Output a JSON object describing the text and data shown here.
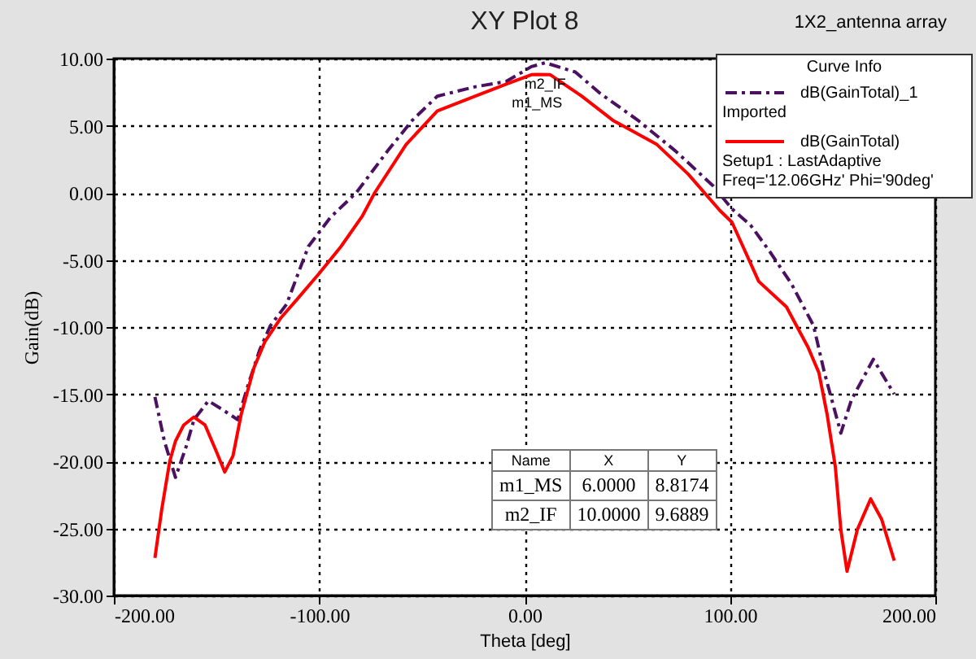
{
  "chart_data": {
    "type": "line",
    "title": "XY Plot 8",
    "xlabel": "Theta [deg]",
    "ylabel": "Gain(dB)",
    "legend_title": "Curve Info",
    "legend": "top right",
    "grid": true,
    "xlim": [
      -200,
      200
    ],
    "ylim": [
      -30,
      10
    ],
    "xticks": [
      {
        "value": -200,
        "label": "-200.00"
      },
      {
        "value": -100,
        "label": "-100.00"
      },
      {
        "value": 0,
        "label": "0.00"
      },
      {
        "value": 100,
        "label": "100.00"
      },
      {
        "value": 200,
        "label": "200.00"
      }
    ],
    "yticks": [
      {
        "value": -30,
        "label": "-30.00"
      },
      {
        "value": -25,
        "label": "-25.00"
      },
      {
        "value": -20,
        "label": "-20.00"
      },
      {
        "value": -15,
        "label": "-15.00"
      },
      {
        "value": -10,
        "label": "-10.00"
      },
      {
        "value": -5,
        "label": "-5.00"
      },
      {
        "value": 0,
        "label": "0.00"
      },
      {
        "value": 5,
        "label": "5.00"
      },
      {
        "value": 10,
        "label": "10.00"
      }
    ],
    "series": [
      {
        "name": "dB(GainTotal)_1",
        "color": "#4b1060",
        "line_style": "dashed",
        "x": [
          -180,
          -175.4,
          -170,
          -164.8,
          -161,
          -154,
          -147.6,
          -139.7,
          -134.4,
          -129,
          -123.8,
          -115.9,
          -105.3,
          -94.4,
          -82,
          -66.8,
          -54.7,
          -42.5,
          -24,
          -8.9,
          3.3,
          10,
          24.7,
          36.9,
          55.2,
          73.6,
          91.9,
          101,
          110,
          119.5,
          130,
          140.7,
          146,
          154,
          159.2,
          169.8,
          180
        ],
        "values": [
          -15.2,
          -18.5,
          -21.2,
          -18.9,
          -16.9,
          -15.5,
          -16.1,
          -16.9,
          -14.2,
          -11.7,
          -9.9,
          -8.3,
          -4.0,
          -1.8,
          0,
          3.1,
          5.4,
          7.2,
          7.9,
          8.3,
          9.4,
          9.6889,
          9.0,
          7.4,
          5.4,
          3.1,
          0.5,
          -1.2,
          -2.4,
          -4.4,
          -6.8,
          -9.9,
          -13.4,
          -17.9,
          -15.4,
          -12.4,
          -15.0
        ]
      },
      {
        "name": "dB(GainTotal)",
        "color": "#ff0000",
        "line_style": "solid",
        "x": [
          -180,
          -176.7,
          -172.8,
          -170,
          -166,
          -161,
          -155.6,
          -150,
          -146,
          -142,
          -138,
          -131.7,
          -126.5,
          -118.6,
          -110.6,
          -100,
          -89.4,
          -78.9,
          -73,
          -57.7,
          -42.5,
          -24,
          -8.9,
          3.3,
          6,
          12.5,
          27.8,
          43,
          64.4,
          79.6,
          95,
          101,
          114,
          127.5,
          138,
          143.3,
          147.3,
          151.3,
          154,
          157,
          162,
          168.5,
          173.8,
          180
        ],
        "values": [
          -27.2,
          -23.6,
          -20.0,
          -18.5,
          -17.3,
          -16.7,
          -17.3,
          -19.3,
          -20.8,
          -19.6,
          -16.5,
          -13.0,
          -11.1,
          -9.3,
          -7.9,
          -6.0,
          -4.0,
          -1.7,
          0,
          3.6,
          6.1,
          7.2,
          8.1,
          8.8,
          8.8174,
          8.8,
          7.2,
          5.4,
          3.6,
          1.4,
          -1.3,
          -2.2,
          -6.6,
          -8.5,
          -11.5,
          -13.4,
          -16.5,
          -20.4,
          -25.1,
          -28.2,
          -25.1,
          -22.8,
          -24.3,
          -27.4
        ]
      }
    ],
    "annotations": [
      "1X2_antenna array",
      "Imported",
      "Setup1 : LastAdaptive",
      "Freq='12.06GHz' Phi='90deg'",
      {
        "text": "m1_MS",
        "x": 6,
        "y": 8.8174
      },
      {
        "text": "m2_IF",
        "x": 10,
        "y": 9.6889
      },
      "Name",
      "X",
      "Y",
      "m1_MS",
      "6.0000",
      "8.8174",
      "m2_IF",
      "10.0000",
      "9.6889"
    ]
  }
}
